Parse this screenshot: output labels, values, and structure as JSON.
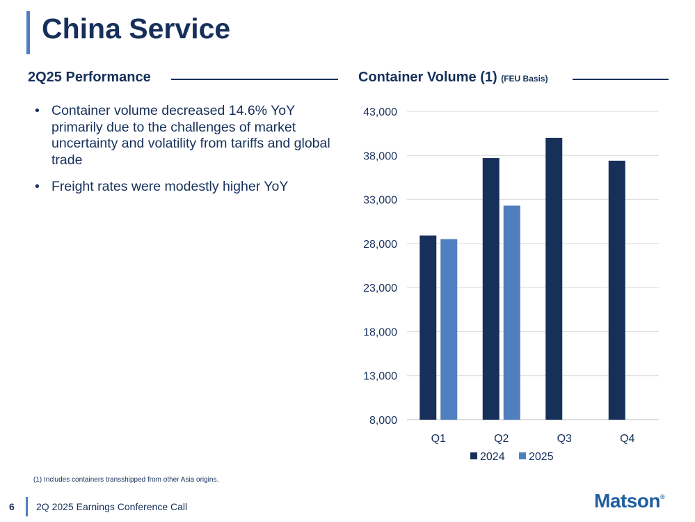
{
  "slide": {
    "title": "China Service",
    "page_number": "6",
    "footer": "2Q 2025 Earnings Conference Call",
    "logo": "Matson",
    "logo_mark": "®",
    "footnote": "(1)  Includes containers transshipped from other Asia origins."
  },
  "performance": {
    "heading": "2Q25 Performance",
    "bullets": [
      "Container volume decreased 14.6% YoY primarily due to the challenges of market uncertainty and volatility from tariffs and global trade",
      "Freight rates were modestly higher YoY"
    ]
  },
  "chart_heading": {
    "main": "Container Volume (1) ",
    "sub": "(FEU Basis)"
  },
  "colors": {
    "navy": "#16305a",
    "blue": "#4f7fbf"
  },
  "chart_data": {
    "type": "bar",
    "title": "Container Volume (1) (FEU Basis)",
    "categories": [
      "Q1",
      "Q2",
      "Q3",
      "Q4"
    ],
    "series": [
      {
        "name": "2024",
        "color": "#16305a",
        "values": [
          28900,
          37700,
          40000,
          37400
        ]
      },
      {
        "name": "2025",
        "color": "#4f7fbf",
        "values": [
          28500,
          32300,
          null,
          null
        ]
      }
    ],
    "ylim": [
      8000,
      43000
    ],
    "yticks": [
      8000,
      13000,
      18000,
      23000,
      28000,
      33000,
      38000,
      43000
    ],
    "ytick_labels": [
      "8,000",
      "13,000",
      "18,000",
      "23,000",
      "28,000",
      "33,000",
      "38,000",
      "43,000"
    ],
    "grid": true,
    "legend": "bottom-center",
    "xlabel": "",
    "ylabel": ""
  }
}
